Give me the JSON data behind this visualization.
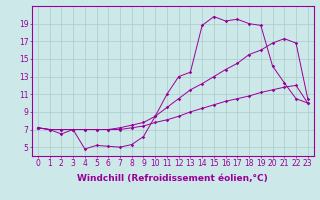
{
  "background_color": "#cce8e8",
  "line_color": "#990099",
  "grid_color": "#aacccc",
  "xlabel": "Windchill (Refroidissement éolien,°C)",
  "xlabel_fontsize": 6.5,
  "xtick_fontsize": 5.5,
  "ytick_fontsize": 5.5,
  "ylim": [
    4.0,
    21.0
  ],
  "xlim": [
    -0.5,
    23.5
  ],
  "yticks": [
    5,
    7,
    9,
    11,
    13,
    15,
    17,
    19
  ],
  "xticks": [
    0,
    1,
    2,
    3,
    4,
    5,
    6,
    7,
    8,
    9,
    10,
    11,
    12,
    13,
    14,
    15,
    16,
    17,
    18,
    19,
    20,
    21,
    22,
    23
  ],
  "line1_x": [
    0,
    1,
    2,
    3,
    4,
    5,
    6,
    7,
    8,
    9,
    10,
    11,
    12,
    13,
    14,
    15,
    16,
    17,
    18,
    19,
    20,
    21,
    22,
    23
  ],
  "line1_y": [
    7.2,
    7.0,
    6.5,
    7.0,
    4.8,
    5.2,
    5.1,
    5.0,
    5.3,
    6.2,
    8.5,
    11.0,
    13.0,
    13.5,
    18.8,
    19.8,
    19.3,
    19.5,
    19.0,
    18.8,
    14.2,
    12.3,
    10.5,
    10.0
  ],
  "line2_x": [
    0,
    1,
    2,
    3,
    4,
    5,
    6,
    7,
    8,
    9,
    10,
    11,
    12,
    13,
    14,
    15,
    16,
    17,
    18,
    19,
    20,
    21,
    22,
    23
  ],
  "line2_y": [
    7.2,
    7.0,
    7.0,
    7.0,
    7.0,
    7.0,
    7.0,
    7.2,
    7.5,
    7.8,
    8.5,
    9.5,
    10.5,
    11.5,
    12.2,
    13.0,
    13.8,
    14.5,
    15.5,
    16.0,
    16.8,
    17.3,
    16.8,
    10.5
  ],
  "line3_x": [
    0,
    1,
    2,
    3,
    4,
    5,
    6,
    7,
    8,
    9,
    10,
    11,
    12,
    13,
    14,
    15,
    16,
    17,
    18,
    19,
    20,
    21,
    22,
    23
  ],
  "line3_y": [
    7.2,
    7.0,
    7.0,
    7.0,
    7.0,
    7.0,
    7.0,
    7.0,
    7.2,
    7.4,
    7.8,
    8.1,
    8.5,
    9.0,
    9.4,
    9.8,
    10.2,
    10.5,
    10.8,
    11.2,
    11.5,
    11.8,
    12.0,
    10.0
  ]
}
